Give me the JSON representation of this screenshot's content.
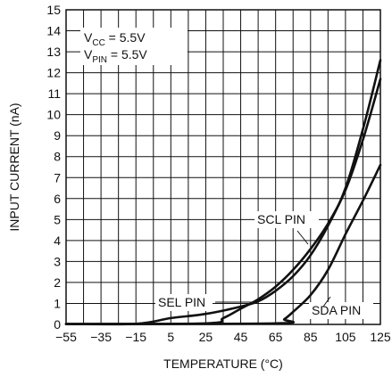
{
  "chart_data": {
    "type": "line",
    "xlabel": "TEMPERATURE (°C)",
    "ylabel": "INPUT CURRENT (nA)",
    "xlim": [
      -55,
      125
    ],
    "ylim": [
      0,
      15
    ],
    "x_ticks": [
      -55,
      -35,
      -15,
      5,
      25,
      45,
      65,
      85,
      105,
      125
    ],
    "y_ticks": [
      0,
      1,
      2,
      3,
      4,
      5,
      6,
      7,
      8,
      9,
      10,
      11,
      12,
      13,
      14,
      15
    ],
    "grid": true,
    "conditions": [
      {
        "main": "V",
        "sub": "CC",
        "rest": " = 5.5V"
      },
      {
        "main": "V",
        "sub": "PIN",
        "rest": " = 5.5V"
      }
    ],
    "series": [
      {
        "name": "SCL PIN",
        "x": [
          -55,
          25,
          35,
          45,
          55,
          65,
          75,
          85,
          95,
          105,
          115,
          125
        ],
        "y": [
          0.02,
          0.05,
          0.3,
          0.75,
          1.2,
          1.8,
          2.6,
          3.6,
          4.8,
          6.4,
          8.8,
          11.7
        ]
      },
      {
        "name": "SDA PIN",
        "x": [
          -55,
          65,
          70,
          75,
          85,
          95,
          105,
          115,
          125
        ],
        "y": [
          0.02,
          0.05,
          0.25,
          0.6,
          1.4,
          2.6,
          4.3,
          5.9,
          7.6
        ]
      },
      {
        "name": "SEL PIN",
        "x": [
          -55,
          -15,
          5,
          25,
          45,
          55,
          65,
          75,
          85,
          95,
          105,
          115,
          125
        ],
        "y": [
          0.02,
          0.03,
          0.3,
          0.5,
          0.85,
          1.1,
          1.6,
          2.3,
          3.3,
          4.7,
          6.5,
          9.3,
          12.6
        ]
      }
    ],
    "annotations": [
      {
        "text": "SCL PIN",
        "target_series": 0
      },
      {
        "text": "SDA PIN",
        "target_series": 1
      },
      {
        "text": "SEL PIN",
        "target_series": 2
      }
    ]
  }
}
